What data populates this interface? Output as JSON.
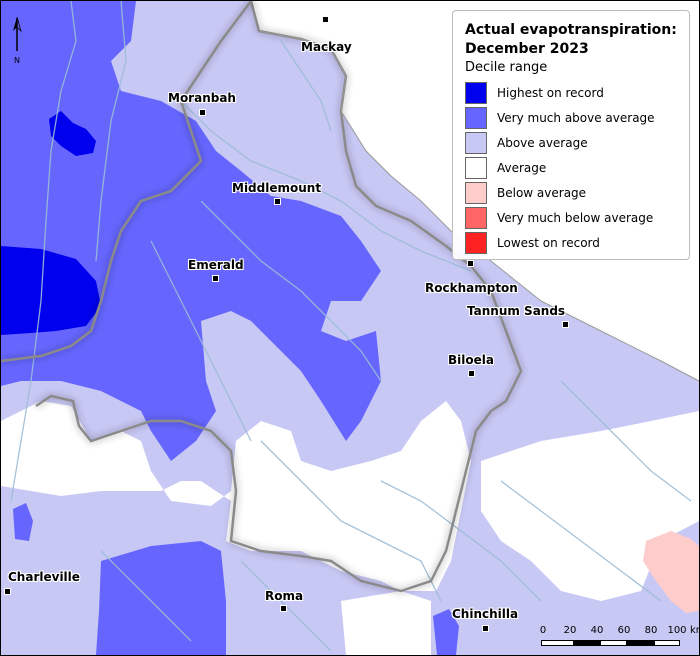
{
  "legend": {
    "title": "Actual evapotranspiration: December 2023",
    "subtitle": "Decile range",
    "items": [
      {
        "label": "Highest on record",
        "color": "#0000ee"
      },
      {
        "label": "Very much above average",
        "color": "#6666ff"
      },
      {
        "label": "Above average",
        "color": "#c8c8f5"
      },
      {
        "label": "Average",
        "color": "#ffffff"
      },
      {
        "label": "Below average",
        "color": "#ffcccc"
      },
      {
        "label": "Very much below average",
        "color": "#ff6666"
      },
      {
        "label": "Lowest on record",
        "color": "#ff2222"
      }
    ]
  },
  "towns": [
    {
      "name": "Mackay"
    },
    {
      "name": "Moranbah"
    },
    {
      "name": "Middlemount"
    },
    {
      "name": "Emerald"
    },
    {
      "name": "Rockhampton"
    },
    {
      "name": "Tannum Sands"
    },
    {
      "name": "Biloela"
    },
    {
      "name": "Charleville"
    },
    {
      "name": "Roma"
    },
    {
      "name": "Chinchilla"
    }
  ],
  "north_arrow": {
    "label": "N"
  },
  "scale_bar": {
    "ticks": [
      "0",
      "20",
      "40",
      "60",
      "80",
      "100"
    ],
    "unit": "km"
  },
  "colors": {
    "ocean": "#ffffff",
    "river": "#9bbcd6",
    "boundary": "#8a8a8a"
  }
}
